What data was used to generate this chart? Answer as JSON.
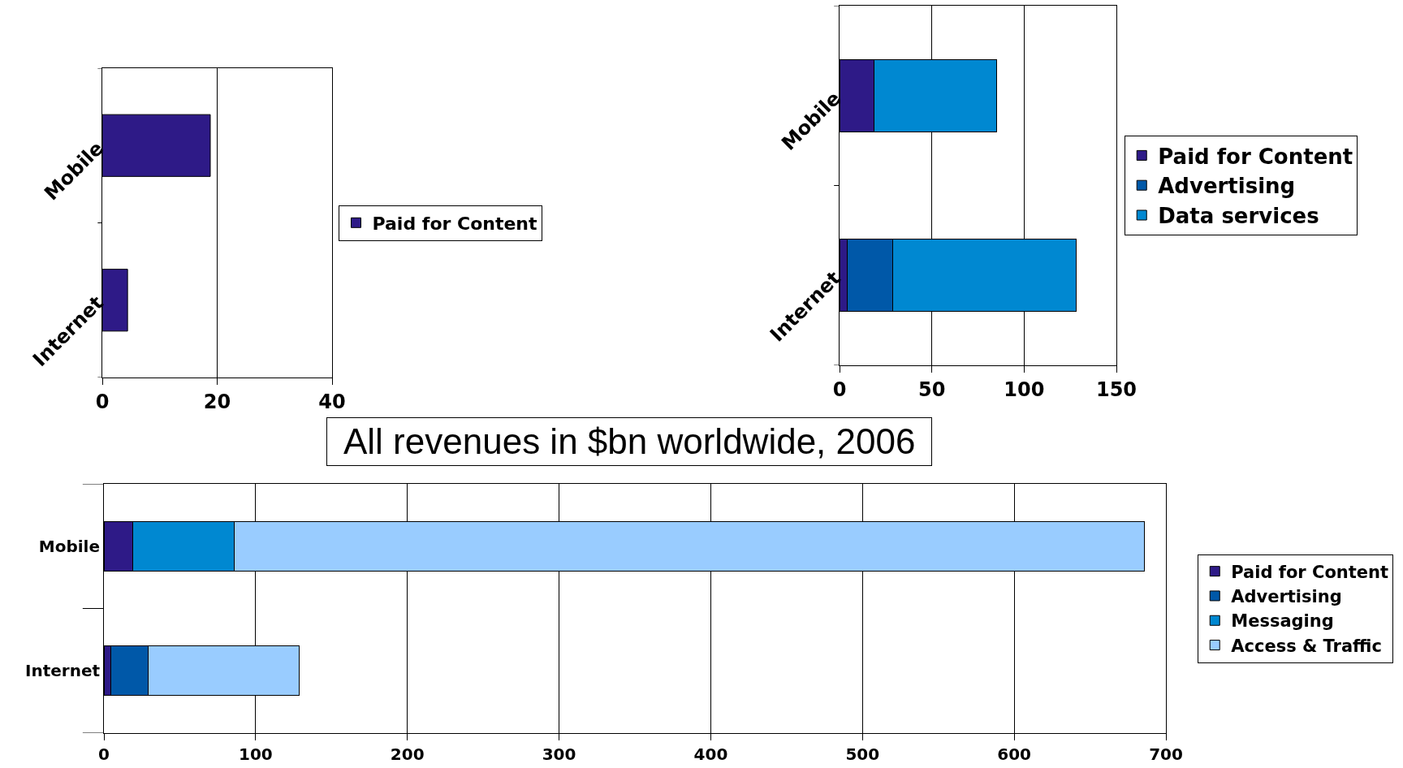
{
  "chart_data": [
    {
      "type": "bar",
      "orientation": "horizontal",
      "stacked": true,
      "categories": [
        "Mobile",
        "Internet"
      ],
      "series": [
        {
          "name": "Paid for Content",
          "color": "#2e1a87",
          "values": [
            18.8,
            4.4
          ]
        }
      ],
      "xlim": [
        0,
        40
      ],
      "xticks": [
        0,
        20,
        40
      ],
      "grid": "x",
      "legend": "right"
    },
    {
      "type": "bar",
      "orientation": "horizontal",
      "stacked": true,
      "categories": [
        "Mobile",
        "Internet"
      ],
      "series": [
        {
          "name": "Paid for Content",
          "color": "#2e1a87",
          "values": [
            18.9,
            4.2
          ]
        },
        {
          "name": "Advertising",
          "color": "#0058a8",
          "values": [
            null,
            24.7
          ]
        },
        {
          "name": "Data services",
          "color": "#0088d1",
          "values": [
            66.3,
            99.2
          ]
        }
      ],
      "xlim": [
        0,
        150
      ],
      "xticks": [
        0,
        50,
        100,
        150
      ],
      "grid": "x",
      "legend": "right"
    },
    {
      "type": "bar",
      "orientation": "horizontal",
      "stacked": true,
      "title": "All revenues in $bn worldwide, 2006",
      "categories": [
        "Mobile",
        "Internet"
      ],
      "series": [
        {
          "name": "Paid for Content",
          "color": "#2e1a87",
          "values": [
            18.8,
            4.4
          ]
        },
        {
          "name": "Advertising",
          "color": "#0058a8",
          "values": [
            null,
            25
          ]
        },
        {
          "name": "Messaging",
          "color": "#0088d1",
          "values": [
            67,
            null
          ]
        },
        {
          "name": "Access & Traffic",
          "color": "#99ccff",
          "values": [
            600,
            99.5
          ]
        }
      ],
      "xlim": [
        0,
        700
      ],
      "xticks": [
        0,
        100,
        200,
        300,
        400,
        500,
        600,
        700
      ],
      "grid": "x",
      "legend": "right"
    }
  ]
}
